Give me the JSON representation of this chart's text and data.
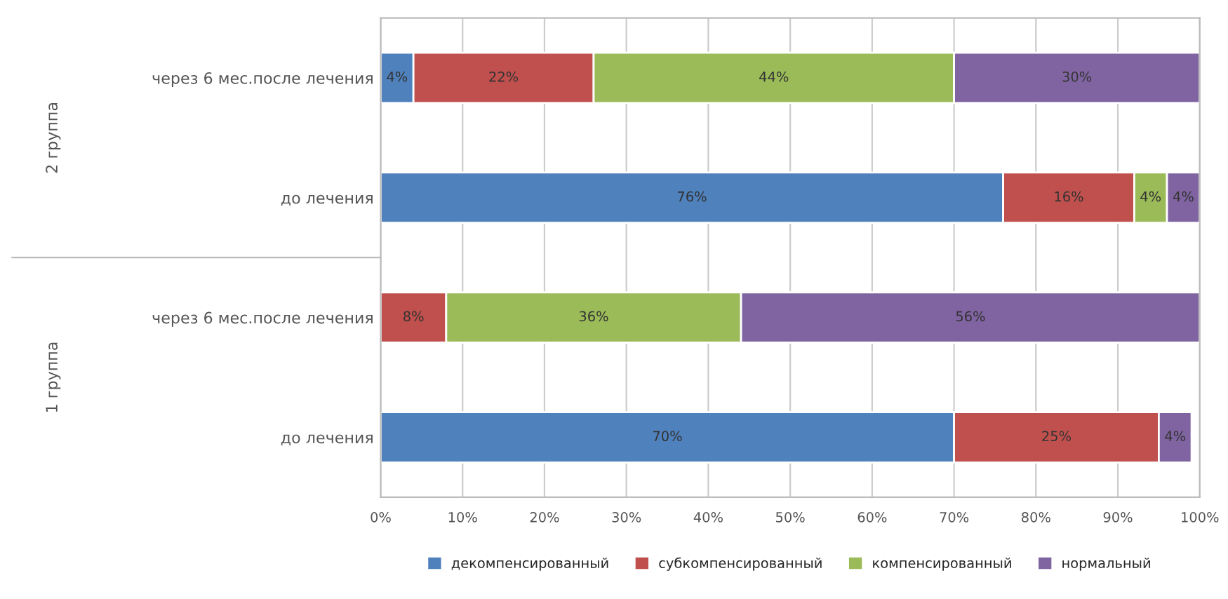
{
  "chart_data": {
    "type": "bar",
    "orientation": "horizontal",
    "stacked": true,
    "categories": [
      "через 6 мес.после лечения",
      "до лечения",
      "через 6 мес.после лечения",
      "до лечения"
    ],
    "series": [
      {
        "name": "декомпенсированный",
        "color": "#4f81bd",
        "values": [
          4,
          76,
          0,
          70
        ],
        "value_labels": [
          "4%",
          "76%",
          null,
          "70%"
        ]
      },
      {
        "name": "субкомпенсированный",
        "color": "#c0504d",
        "values": [
          22,
          16,
          8,
          25
        ],
        "value_labels": [
          "22%",
          "16%",
          "8%",
          "25%"
        ]
      },
      {
        "name": "компенсированный",
        "color": "#9bbb59",
        "values": [
          44,
          4,
          36,
          0
        ],
        "value_labels": [
          "44%",
          "4%",
          "36%",
          null
        ]
      },
      {
        "name": "нормальный",
        "color": "#8064a2",
        "values": [
          30,
          4,
          56,
          4
        ],
        "value_labels": [
          "30%",
          "4%",
          "56%",
          "4%"
        ]
      }
    ],
    "xlim": [
      0,
      100
    ],
    "xticks": [
      {
        "value": 0,
        "label": "0%"
      },
      {
        "value": 10,
        "label": "10%"
      },
      {
        "value": 20,
        "label": "20%"
      },
      {
        "value": 30,
        "label": "30%"
      },
      {
        "value": 40,
        "label": "40%"
      },
      {
        "value": 50,
        "label": "50%"
      },
      {
        "value": 60,
        "label": "60%"
      },
      {
        "value": 70,
        "label": "70%"
      },
      {
        "value": 80,
        "label": "80%"
      },
      {
        "value": 90,
        "label": "90%"
      },
      {
        "value": 100,
        "label": "100%"
      }
    ],
    "annotations": [
      "2 группа",
      "1 группа"
    ],
    "grid": "x",
    "legend": "bottom"
  }
}
